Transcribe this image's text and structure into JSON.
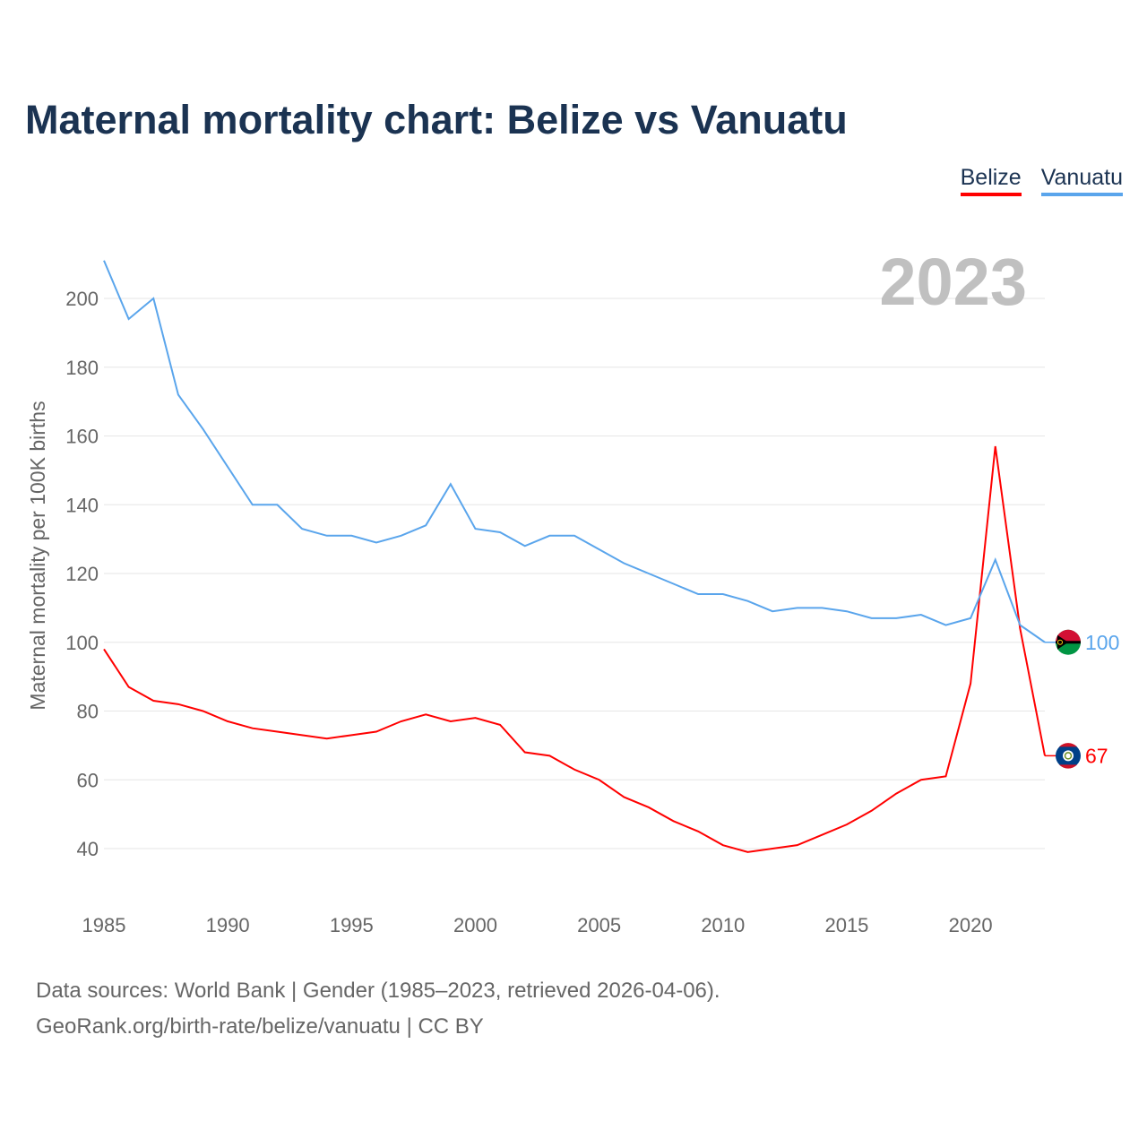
{
  "title": "Maternal mortality chart: Belize vs Vanuatu",
  "legend": [
    {
      "label": "Belize",
      "color": "#ff0000"
    },
    {
      "label": "Vanuatu",
      "color": "#5aa5ec"
    }
  ],
  "footer": {
    "line1": "Data sources: World Bank | Gender (1985–2023, retrieved 2026-04-06).",
    "line2": "GeoRank.org/birth-rate/belize/vanuatu | CC BY"
  },
  "chart_data": {
    "type": "line",
    "title": "Maternal mortality chart: Belize vs Vanuatu",
    "ylabel": "Maternal mortality per 100K births",
    "xlabel": "",
    "year_label": "2023",
    "x": [
      1985,
      1986,
      1987,
      1988,
      1989,
      1990,
      1991,
      1992,
      1993,
      1994,
      1995,
      1996,
      1997,
      1998,
      1999,
      2000,
      2001,
      2002,
      2003,
      2004,
      2005,
      2006,
      2007,
      2008,
      2009,
      2010,
      2011,
      2012,
      2013,
      2014,
      2015,
      2016,
      2017,
      2018,
      2019,
      2020,
      2021,
      2022,
      2023
    ],
    "xticks": [
      1985,
      1990,
      1995,
      2000,
      2005,
      2010,
      2015,
      2020
    ],
    "yticks": [
      40,
      60,
      80,
      100,
      120,
      140,
      160,
      180,
      200
    ],
    "ylim": [
      40,
      200
    ],
    "grid": true,
    "series": [
      {
        "name": "Belize",
        "color": "#ff0000",
        "end_label": "67",
        "values": [
          98,
          87,
          83,
          82,
          80,
          77,
          75,
          74,
          73,
          72,
          73,
          74,
          77,
          79,
          77,
          78,
          76,
          68,
          67,
          63,
          60,
          55,
          52,
          48,
          45,
          41,
          39,
          40,
          41,
          44,
          47,
          51,
          56,
          60,
          61,
          88,
          157,
          104,
          67
        ]
      },
      {
        "name": "Vanuatu",
        "color": "#5aa5ec",
        "end_label": "100",
        "values": [
          211,
          194,
          200,
          172,
          162,
          151,
          140,
          140,
          133,
          131,
          131,
          129,
          131,
          134,
          146,
          133,
          132,
          128,
          131,
          131,
          127,
          123,
          120,
          117,
          114,
          114,
          112,
          109,
          110,
          110,
          109,
          107,
          107,
          108,
          105,
          107,
          124,
          105,
          100
        ]
      }
    ]
  }
}
